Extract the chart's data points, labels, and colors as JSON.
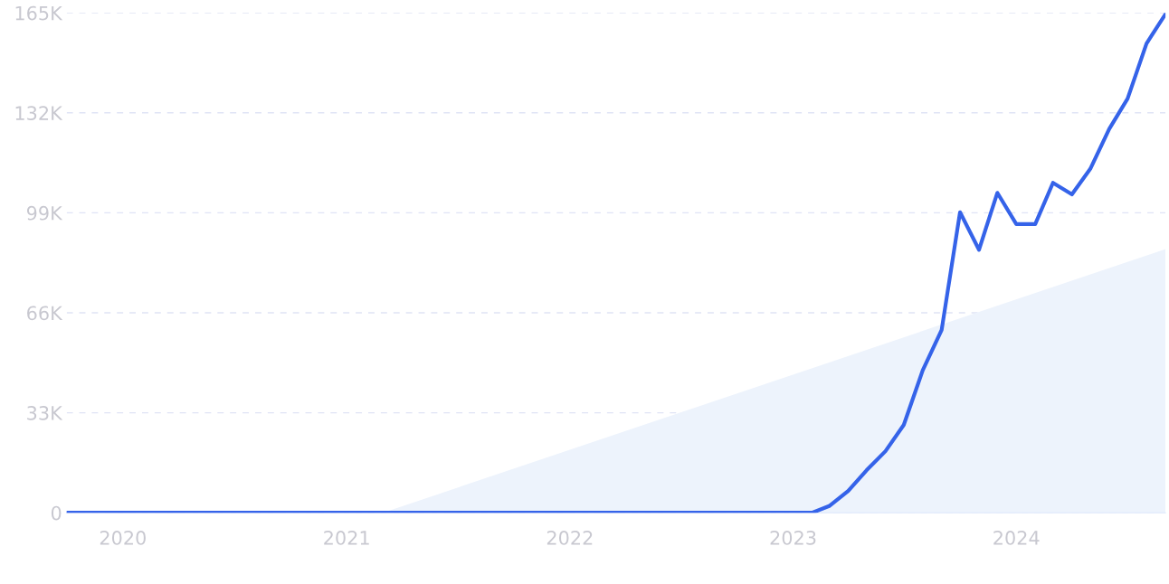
{
  "chart_data": {
    "type": "line",
    "x": [
      "2019-10",
      "2019-11",
      "2019-12",
      "2020-01",
      "2020-02",
      "2020-03",
      "2020-04",
      "2020-05",
      "2020-06",
      "2020-07",
      "2020-08",
      "2020-09",
      "2020-10",
      "2020-11",
      "2020-12",
      "2021-01",
      "2021-02",
      "2021-03",
      "2021-04",
      "2021-05",
      "2021-06",
      "2021-07",
      "2021-08",
      "2021-09",
      "2021-10",
      "2021-11",
      "2021-12",
      "2022-01",
      "2022-02",
      "2022-03",
      "2022-04",
      "2022-05",
      "2022-06",
      "2022-07",
      "2022-08",
      "2022-09",
      "2022-10",
      "2022-11",
      "2022-12",
      "2023-01",
      "2023-02",
      "2023-03",
      "2023-04",
      "2023-05",
      "2023-06",
      "2023-07",
      "2023-08",
      "2023-09",
      "2023-10",
      "2023-11",
      "2023-12",
      "2024-01",
      "2024-02",
      "2024-03",
      "2024-04",
      "2024-05",
      "2024-06",
      "2024-07",
      "2024-08",
      "2024-09"
    ],
    "series": [
      {
        "type": "area",
        "color": "#edf3fc",
        "x": [
          "2021-03",
          "2024-09"
        ],
        "values": [
          0,
          87000
        ]
      },
      {
        "color": "#3563e9",
        "values": [
          0,
          0,
          0,
          0,
          0,
          0,
          0,
          0,
          0,
          0,
          0,
          0,
          0,
          0,
          0,
          0,
          0,
          0,
          0,
          0,
          0,
          0,
          0,
          0,
          0,
          0,
          0,
          0,
          0,
          0,
          0,
          0,
          0,
          0,
          0,
          0,
          0,
          0,
          0,
          0,
          0,
          2200,
          7200,
          14000,
          20300,
          29000,
          47000,
          60400,
          99200,
          86800,
          105600,
          95300,
          95300,
          108900,
          105100,
          113500,
          126700,
          136700,
          154900,
          164600
        ]
      }
    ],
    "xlim": [
      "2019-10",
      "2024-09"
    ],
    "xticks": [
      {
        "value": "2020-01",
        "label": "2020"
      },
      {
        "value": "2021-01",
        "label": "2021"
      },
      {
        "value": "2022-01",
        "label": "2022"
      },
      {
        "value": "2023-01",
        "label": "2023"
      },
      {
        "value": "2024-01",
        "label": "2024"
      }
    ],
    "ylim": [
      0,
      165000
    ],
    "yticks": [
      0,
      {
        "value": 33000,
        "label": "33K"
      },
      {
        "value": 66000,
        "label": "66K"
      },
      {
        "value": 99000,
        "label": "99K"
      },
      {
        "value": 132000,
        "label": "132K"
      },
      {
        "value": 165000,
        "label": "165K"
      }
    ],
    "grid": "y",
    "line_style": "solid",
    "marker": "none"
  }
}
